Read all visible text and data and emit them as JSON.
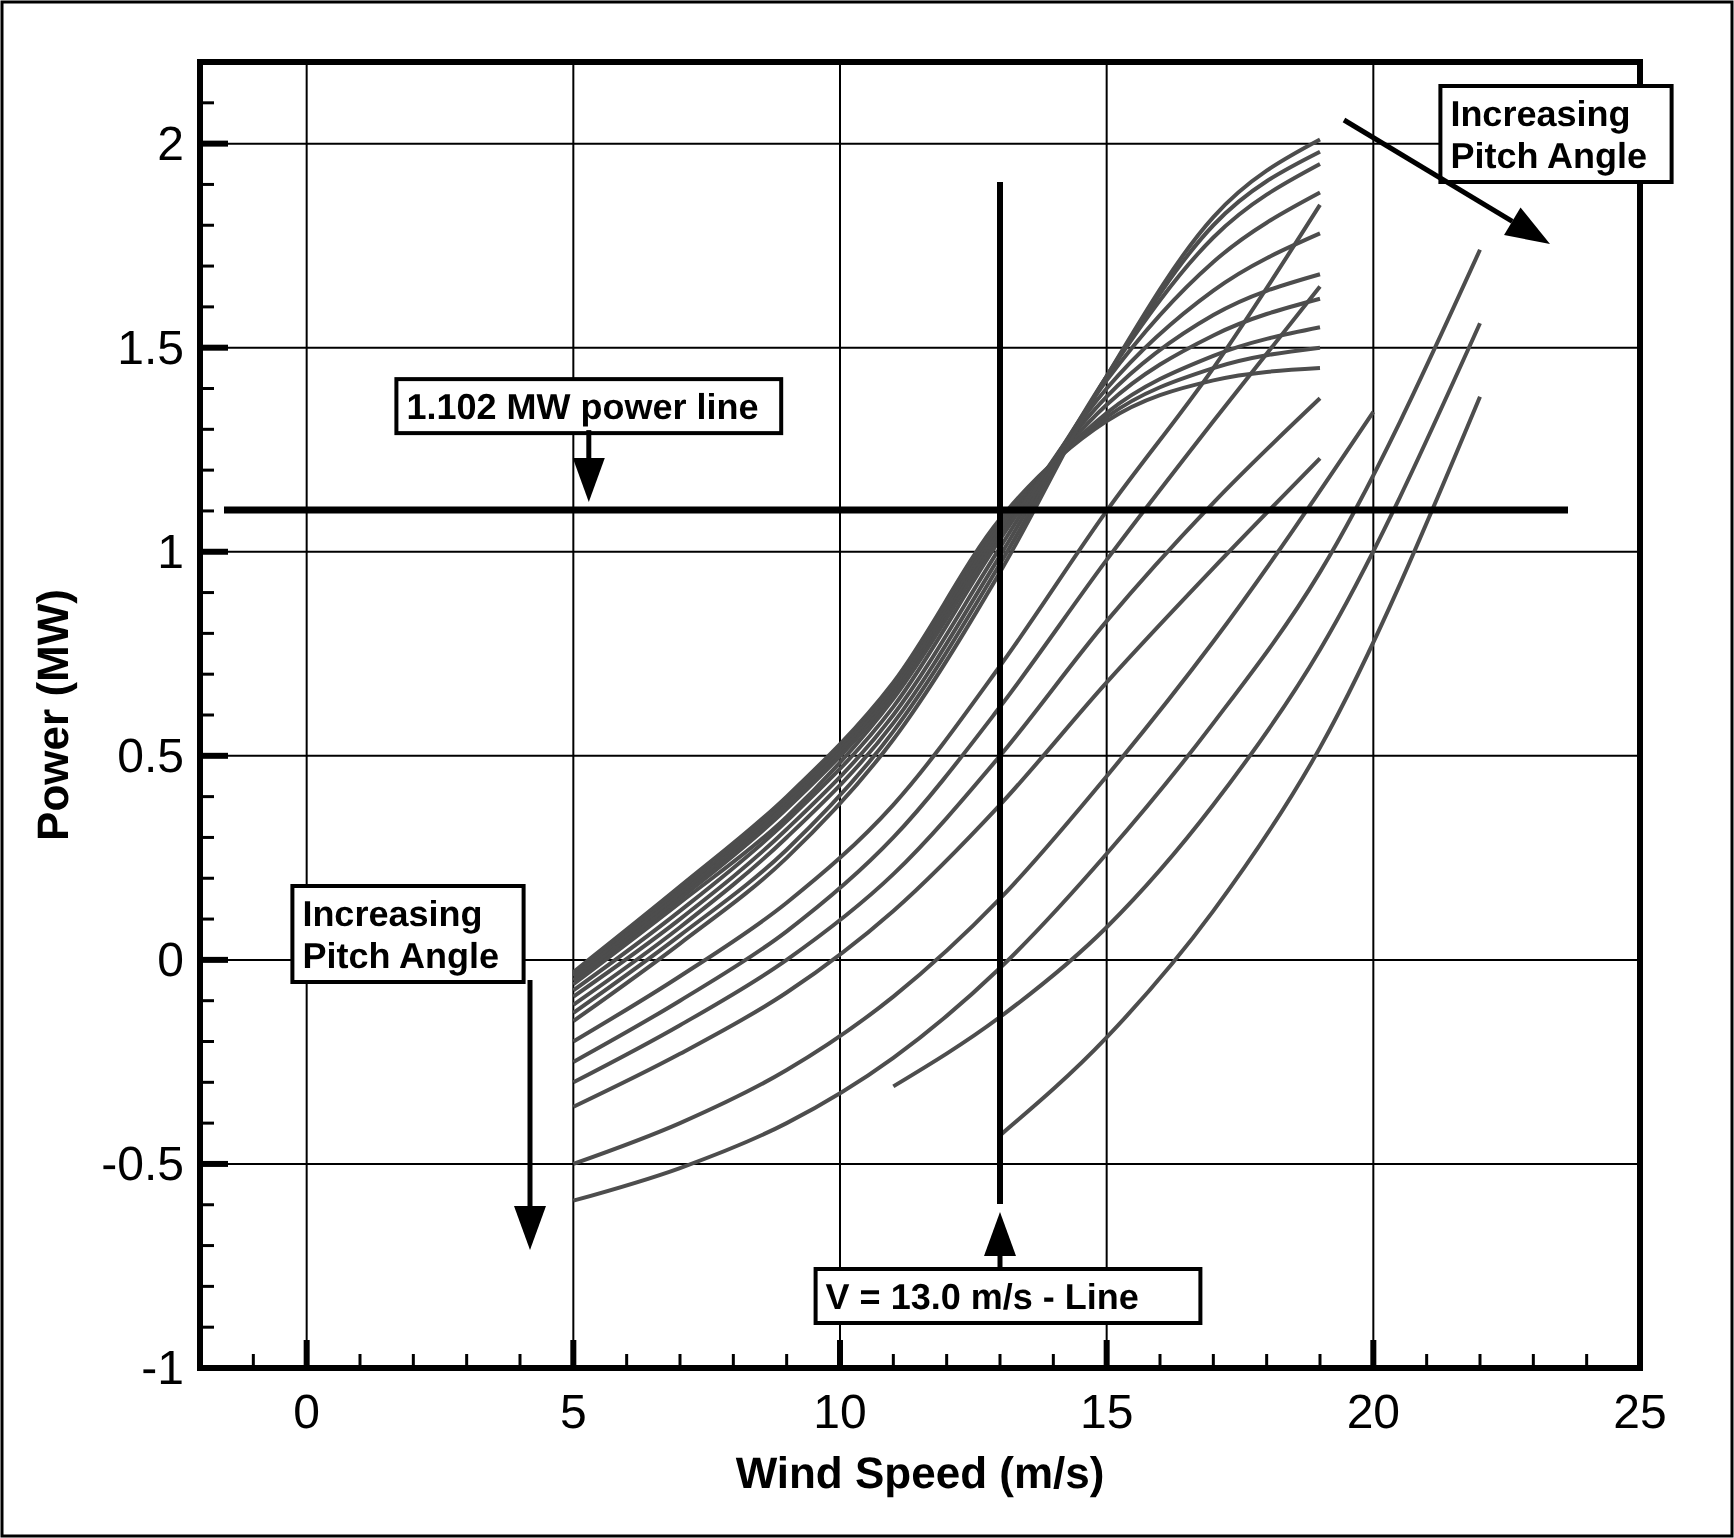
{
  "chart_data": {
    "type": "line",
    "xlabel": "Wind Speed (m/s)",
    "ylabel": "Power (MW)",
    "xlim": [
      -2,
      25
    ],
    "ylim": [
      -1,
      2.2
    ],
    "xticks": [
      {
        "value": -1,
        "label": null
      },
      0,
      {
        "value": 1,
        "label": null
      },
      {
        "value": 2,
        "label": null
      },
      {
        "value": 3,
        "label": null
      },
      {
        "value": 4,
        "label": null
      },
      5,
      {
        "value": 6,
        "label": null
      },
      {
        "value": 7,
        "label": null
      },
      {
        "value": 8,
        "label": null
      },
      {
        "value": 9,
        "label": null
      },
      10,
      {
        "value": 11,
        "label": null
      },
      {
        "value": 12,
        "label": null
      },
      {
        "value": 13,
        "label": null
      },
      {
        "value": 14,
        "label": null
      },
      15,
      {
        "value": 16,
        "label": null
      },
      {
        "value": 17,
        "label": null
      },
      {
        "value": 18,
        "label": null
      },
      {
        "value": 19,
        "label": null
      },
      20,
      {
        "value": 21,
        "label": null
      },
      {
        "value": 22,
        "label": null
      },
      {
        "value": 23,
        "label": null
      },
      {
        "value": 24,
        "label": null
      },
      25
    ],
    "yticks": [
      -1,
      {
        "value": -0.9,
        "label": null
      },
      {
        "value": -0.8,
        "label": null
      },
      {
        "value": -0.7,
        "label": null
      },
      {
        "value": -0.6,
        "label": null
      },
      -0.5,
      {
        "value": -0.4,
        "label": null
      },
      {
        "value": -0.3,
        "label": null
      },
      {
        "value": -0.2,
        "label": null
      },
      {
        "value": -0.1,
        "label": null
      },
      0,
      {
        "value": 0.1,
        "label": null
      },
      {
        "value": 0.2,
        "label": null
      },
      {
        "value": 0.3,
        "label": null
      },
      {
        "value": 0.4,
        "label": null
      },
      0.5,
      {
        "value": 0.6,
        "label": null
      },
      {
        "value": 0.7,
        "label": null
      },
      {
        "value": 0.8,
        "label": null
      },
      {
        "value": 0.9,
        "label": null
      },
      1,
      {
        "value": 1.1,
        "label": null
      },
      {
        "value": 1.2,
        "label": null
      },
      {
        "value": 1.3,
        "label": null
      },
      {
        "value": 1.4,
        "label": null
      },
      1.5,
      {
        "value": 1.6,
        "label": null
      },
      {
        "value": 1.7,
        "label": null
      },
      {
        "value": 1.8,
        "label": null
      },
      {
        "value": 1.9,
        "label": null
      },
      2,
      {
        "value": 2.1,
        "label": null
      }
    ],
    "grid": true,
    "marker": "none",
    "line_style": "solid",
    "x": [
      5,
      7,
      9,
      11,
      13,
      15,
      17,
      19
    ],
    "series": [
      {
        "color": "#4d4d4d",
        "values": [
          -0.03,
          0.18,
          0.4,
          0.68,
          1.08,
          1.32,
          1.42,
          1.45
        ]
      },
      {
        "color": "#4d4d4d",
        "values": [
          -0.035,
          0.17,
          0.39,
          0.67,
          1.07,
          1.33,
          1.45,
          1.5
        ]
      },
      {
        "color": "#4d4d4d",
        "values": [
          -0.04,
          0.16,
          0.38,
          0.66,
          1.06,
          1.34,
          1.48,
          1.55
        ]
      },
      {
        "color": "#4d4d4d",
        "values": [
          -0.05,
          0.15,
          0.37,
          0.65,
          1.05,
          1.36,
          1.53,
          1.62
        ]
      },
      {
        "color": "#4d4d4d",
        "values": [
          -0.06,
          0.14,
          0.35,
          0.64,
          1.04,
          1.38,
          1.58,
          1.68
        ]
      },
      {
        "color": "#4d4d4d",
        "values": [
          -0.075,
          0.12,
          0.34,
          0.62,
          1.03,
          1.4,
          1.64,
          1.78
        ]
      },
      {
        "color": "#4d4d4d",
        "values": [
          -0.09,
          0.1,
          0.32,
          0.6,
          1.01,
          1.42,
          1.71,
          1.88
        ]
      },
      {
        "color": "#4d4d4d",
        "values": [
          -0.11,
          0.08,
          0.3,
          0.58,
          0.99,
          1.43,
          1.77,
          1.95
        ]
      },
      {
        "color": "#4d4d4d",
        "values": [
          -0.13,
          0.06,
          0.27,
          0.56,
          0.97,
          1.43,
          1.8,
          1.98
        ]
      },
      {
        "color": "#4d4d4d",
        "values": [
          -0.15,
          0.04,
          0.25,
          0.54,
          0.95,
          1.43,
          1.82,
          2.01
        ]
      },
      {
        "color": "#4d4d4d",
        "values": [
          -0.2,
          -0.04,
          0.14,
          0.38,
          0.72,
          1.1,
          1.45,
          1.85
        ]
      },
      {
        "color": "#4d4d4d",
        "values": [
          -0.25,
          -0.1,
          0.07,
          0.3,
          0.62,
          0.98,
          1.32,
          1.65
        ]
      },
      {
        "color": "#4d4d4d",
        "values": [
          -0.3,
          -0.16,
          0.0,
          0.21,
          0.5,
          0.83,
          1.12,
          1.376
        ]
      },
      {
        "color": "#4d4d4d",
        "values": [
          -0.36,
          -0.23,
          -0.08,
          0.12,
          0.38,
          0.68,
          0.96,
          1.229
        ]
      },
      {
        "color": "#4d4d4d",
        "x": [
          5,
          7,
          9,
          11,
          13,
          15,
          17,
          20
        ],
        "values": [
          -0.5,
          -0.4,
          -0.27,
          -0.09,
          0.15,
          0.45,
          0.78,
          1.343
        ]
      },
      {
        "color": "#4d4d4d",
        "x": [
          5,
          7,
          9,
          11,
          13,
          15,
          17,
          19,
          22
        ],
        "values": [
          -0.59,
          -0.51,
          -0.4,
          -0.24,
          -0.02,
          0.26,
          0.58,
          0.95,
          1.74
        ]
      },
      {
        "color": "#4d4d4d",
        "x": [
          11,
          13,
          15,
          17,
          19,
          22
        ],
        "values": [
          -0.31,
          -0.14,
          0.08,
          0.38,
          0.76,
          1.56
        ]
      },
      {
        "color": "#4d4d4d",
        "x": [
          13,
          15,
          17,
          19,
          22
        ],
        "values": [
          -0.43,
          -0.19,
          0.12,
          0.52,
          1.38
        ]
      }
    ],
    "ref_lines": [
      {
        "axis": "y",
        "value": 1.102,
        "label": "1.102 MW power line",
        "color": "#000000"
      },
      {
        "axis": "x",
        "value": 13,
        "label": "V = 13.0 m/s - Line",
        "color": "#000000"
      }
    ],
    "annotations": [
      "Increasing\nPitch Angle",
      "Increasing\nPitch Angle"
    ]
  }
}
